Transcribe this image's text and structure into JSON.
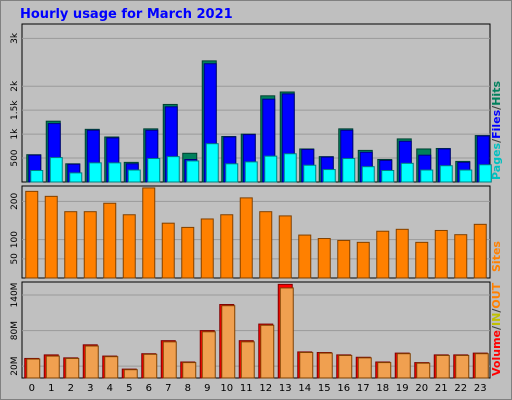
{
  "chart_data": [
    {
      "type": "bar",
      "title": "Hourly usage for March 2021",
      "panel": "top",
      "categories": [
        "0",
        "1",
        "2",
        "3",
        "4",
        "5",
        "6",
        "7",
        "8",
        "9",
        "10",
        "11",
        "12",
        "13",
        "14",
        "15",
        "16",
        "17",
        "18",
        "19",
        "20",
        "21",
        "22",
        "23"
      ],
      "y_ticks": [
        "500",
        "1k",
        "1.5k",
        "2k",
        "3k"
      ],
      "legend": [
        "Pages",
        "Files",
        "Hits"
      ],
      "series": [
        {
          "name": "Hits",
          "values": [
            570,
            1270,
            380,
            1100,
            940,
            410,
            1110,
            1620,
            600,
            2530,
            950,
            1000,
            1800,
            1880,
            690,
            530,
            1110,
            660,
            470,
            900,
            690,
            700,
            430,
            970
          ]
        },
        {
          "name": "Files",
          "values": [
            560,
            1220,
            370,
            1080,
            920,
            380,
            1080,
            1570,
            470,
            2470,
            940,
            990,
            1730,
            1840,
            680,
            520,
            1080,
            620,
            450,
            850,
            560,
            690,
            410,
            960
          ]
        },
        {
          "name": "Pages",
          "values": [
            240,
            510,
            190,
            400,
            400,
            250,
            490,
            530,
            440,
            800,
            380,
            420,
            540,
            590,
            350,
            260,
            490,
            320,
            240,
            390,
            250,
            340,
            250,
            360
          ]
        }
      ],
      "colors": {
        "Hits": "#00805c",
        "Files": "#0000ff",
        "Pages": "#00ffff"
      }
    },
    {
      "type": "bar",
      "panel": "middle",
      "categories": [
        "0",
        "1",
        "2",
        "3",
        "4",
        "5",
        "6",
        "7",
        "8",
        "9",
        "10",
        "11",
        "12",
        "13",
        "14",
        "15",
        "16",
        "17",
        "18",
        "19",
        "20",
        "21",
        "22",
        "23"
      ],
      "y_ticks": [
        "50",
        "100",
        "200"
      ],
      "legend": [
        "Sites"
      ],
      "series": [
        {
          "name": "Sites",
          "values": [
            226,
            213,
            173,
            173,
            195,
            165,
            235,
            143,
            132,
            154,
            165,
            209,
            173,
            162,
            112,
            103,
            98,
            93,
            122,
            127,
            93,
            124,
            113,
            140
          ]
        }
      ],
      "colors": {
        "Sites": "#ff8000"
      }
    },
    {
      "type": "bar",
      "panel": "bottom",
      "categories": [
        "0",
        "1",
        "2",
        "3",
        "4",
        "5",
        "6",
        "7",
        "8",
        "9",
        "10",
        "11",
        "12",
        "13",
        "14",
        "15",
        "16",
        "17",
        "18",
        "19",
        "20",
        "21",
        "22",
        "23"
      ],
      "y_ticks": [
        "20M",
        "80M",
        "140M"
      ],
      "legend": [
        "Volume",
        "IN",
        "OUT"
      ],
      "series": [
        {
          "name": "Volume",
          "values": [
            33,
            39,
            34,
            56,
            37,
            15,
            41,
            63,
            27,
            80,
            124,
            63,
            91,
            158,
            44,
            43,
            39,
            35,
            27,
            42,
            26,
            39,
            39,
            42
          ]
        },
        {
          "name": "OUT",
          "values": [
            32,
            37,
            33,
            54,
            36,
            14,
            40,
            61,
            26,
            78,
            122,
            61,
            89,
            152,
            43,
            42,
            38,
            34,
            26,
            41,
            25,
            38,
            38,
            41
          ]
        }
      ],
      "colors": {
        "Volume": "#ff0000",
        "IN": "#ffff00",
        "OUT": "#ff8000"
      }
    }
  ],
  "legend_separator": "/",
  "legend_colors": {
    "Pages": "#00c0c0",
    "Files": "#0000ff",
    "Hits": "#00805c",
    "Sites": "#ff8000",
    "Volume": "#ff0000",
    "IN": "#c0c000",
    "OUT": "#ff8000"
  }
}
